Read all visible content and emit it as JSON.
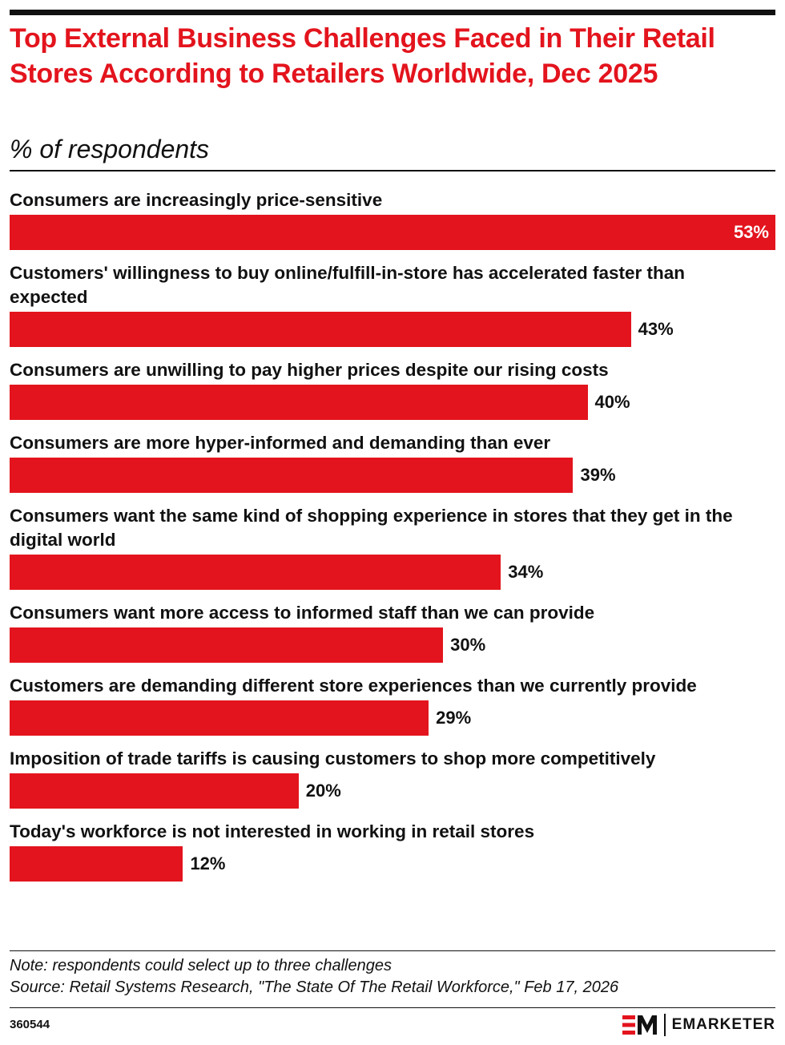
{
  "chart_data": {
    "type": "bar",
    "orientation": "horizontal",
    "title": "Top External Business Challenges Faced in Their Retail Stores According to Retailers Worldwide, Dec 2025",
    "subtitle": "% of respondents",
    "categories": [
      "Consumers are increasingly price-sensitive",
      "Customers' willingness to buy online/fulfill-in-store has accelerated faster than expected",
      "Consumers are unwilling to pay higher prices despite our rising costs",
      "Consumers are more hyper-informed and demanding than ever",
      "Consumers want the same kind of shopping experience in stores that they get in the digital world",
      "Consumers want more access to informed staff than we can provide",
      "Customers are demanding different store experiences than we currently provide",
      "Imposition of trade tariffs is causing customers to shop more competitively",
      "Today's workforce is not interested in working in retail stores"
    ],
    "values": [
      53,
      43,
      40,
      39,
      34,
      30,
      29,
      20,
      12
    ],
    "value_labels": [
      "53%",
      "43%",
      "40%",
      "39%",
      "34%",
      "30%",
      "29%",
      "20%",
      "12%"
    ],
    "color": "#e3141d",
    "note": "Note: respondents could select up to three challenges",
    "source": "Source: Retail Systems Research, \"The State Of The Retail Workforce,\" Feb 17, 2026",
    "chart_id": "360544",
    "brand": "EMARKETER"
  }
}
